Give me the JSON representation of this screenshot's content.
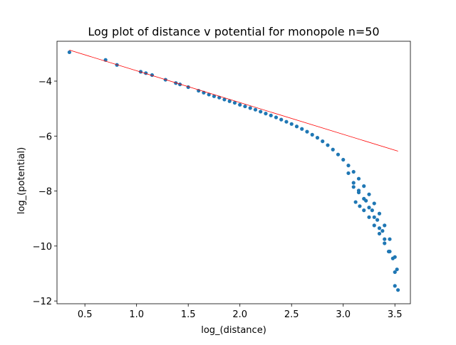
{
  "chart_data": {
    "type": "scatter",
    "title": "Log plot of distance v potential for monopole n=50",
    "xlabel": "log_(distance)",
    "ylabel": "log_(potential)",
    "xlim": [
      0.23,
      3.65
    ],
    "ylim": [
      -12.1,
      -2.55
    ],
    "xticks": [
      0.5,
      1.0,
      1.5,
      2.0,
      2.5,
      3.0,
      3.5
    ],
    "xtick_labels": [
      "0.5",
      "1.0",
      "1.5",
      "2.0",
      "2.5",
      "3.0",
      "3.5"
    ],
    "yticks": [
      -12,
      -10,
      -8,
      -6,
      -4
    ],
    "ytick_labels": [
      "−12",
      "−10",
      "−8",
      "−6",
      "−4"
    ],
    "grid": false,
    "colors": {
      "points": "#1f77b4",
      "fit": "#ff0000"
    },
    "fit_line": {
      "x": [
        0.35,
        3.53
      ],
      "y": [
        -2.87,
        -6.55
      ]
    },
    "series": [
      {
        "points": [
          [
            0.35,
            -2.95
          ],
          [
            0.7,
            -3.23
          ],
          [
            0.81,
            -3.41
          ],
          [
            1.04,
            -3.66
          ],
          [
            1.09,
            -3.71
          ],
          [
            1.15,
            -3.78
          ],
          [
            1.28,
            -3.95
          ],
          [
            1.38,
            -4.07
          ],
          [
            1.42,
            -4.12
          ],
          [
            1.5,
            -4.22
          ],
          [
            1.6,
            -4.35
          ],
          [
            1.65,
            -4.42
          ],
          [
            1.7,
            -4.49
          ],
          [
            1.75,
            -4.55
          ],
          [
            1.8,
            -4.6
          ],
          [
            1.85,
            -4.67
          ],
          [
            1.9,
            -4.73
          ],
          [
            1.95,
            -4.79
          ],
          [
            2.0,
            -4.86
          ],
          [
            2.05,
            -4.92
          ],
          [
            2.1,
            -4.98
          ],
          [
            2.15,
            -5.04
          ],
          [
            2.2,
            -5.11
          ],
          [
            2.25,
            -5.18
          ],
          [
            2.3,
            -5.25
          ],
          [
            2.35,
            -5.32
          ],
          [
            2.4,
            -5.4
          ],
          [
            2.45,
            -5.48
          ],
          [
            2.5,
            -5.56
          ],
          [
            2.55,
            -5.65
          ],
          [
            2.6,
            -5.74
          ],
          [
            2.65,
            -5.84
          ],
          [
            2.7,
            -5.95
          ],
          [
            2.75,
            -6.06
          ],
          [
            2.8,
            -6.19
          ],
          [
            2.85,
            -6.33
          ],
          [
            2.9,
            -6.49
          ],
          [
            2.95,
            -6.67
          ],
          [
            3.0,
            -6.86
          ],
          [
            3.05,
            -7.07
          ],
          [
            3.1,
            -7.3
          ],
          [
            3.15,
            -7.55
          ],
          [
            3.2,
            -7.82
          ],
          [
            3.25,
            -8.12
          ],
          [
            3.3,
            -8.45
          ],
          [
            3.35,
            -8.82
          ],
          [
            3.4,
            -9.25
          ],
          [
            3.45,
            -9.75
          ],
          [
            3.5,
            -10.4
          ],
          [
            3.52,
            -10.85
          ],
          [
            3.05,
            -7.35
          ],
          [
            3.1,
            -7.7
          ],
          [
            3.15,
            -7.98
          ],
          [
            3.2,
            -8.28
          ],
          [
            3.25,
            -8.6
          ],
          [
            3.3,
            -8.95
          ],
          [
            3.35,
            -9.35
          ],
          [
            3.4,
            -9.75
          ],
          [
            3.45,
            -10.2
          ],
          [
            3.5,
            -10.95
          ],
          [
            3.12,
            -8.4
          ],
          [
            3.16,
            -8.55
          ],
          [
            3.2,
            -8.7
          ],
          [
            3.25,
            -8.95
          ],
          [
            3.3,
            -9.25
          ],
          [
            3.35,
            -9.55
          ],
          [
            3.4,
            -9.9
          ],
          [
            3.44,
            -10.2
          ],
          [
            3.48,
            -10.45
          ],
          [
            3.53,
            -11.6
          ],
          [
            3.1,
            -7.85
          ],
          [
            3.15,
            -8.05
          ],
          [
            3.22,
            -8.35
          ],
          [
            3.28,
            -8.7
          ],
          [
            3.33,
            -9.05
          ],
          [
            3.38,
            -9.45
          ],
          [
            3.5,
            -11.45
          ]
        ]
      }
    ]
  }
}
